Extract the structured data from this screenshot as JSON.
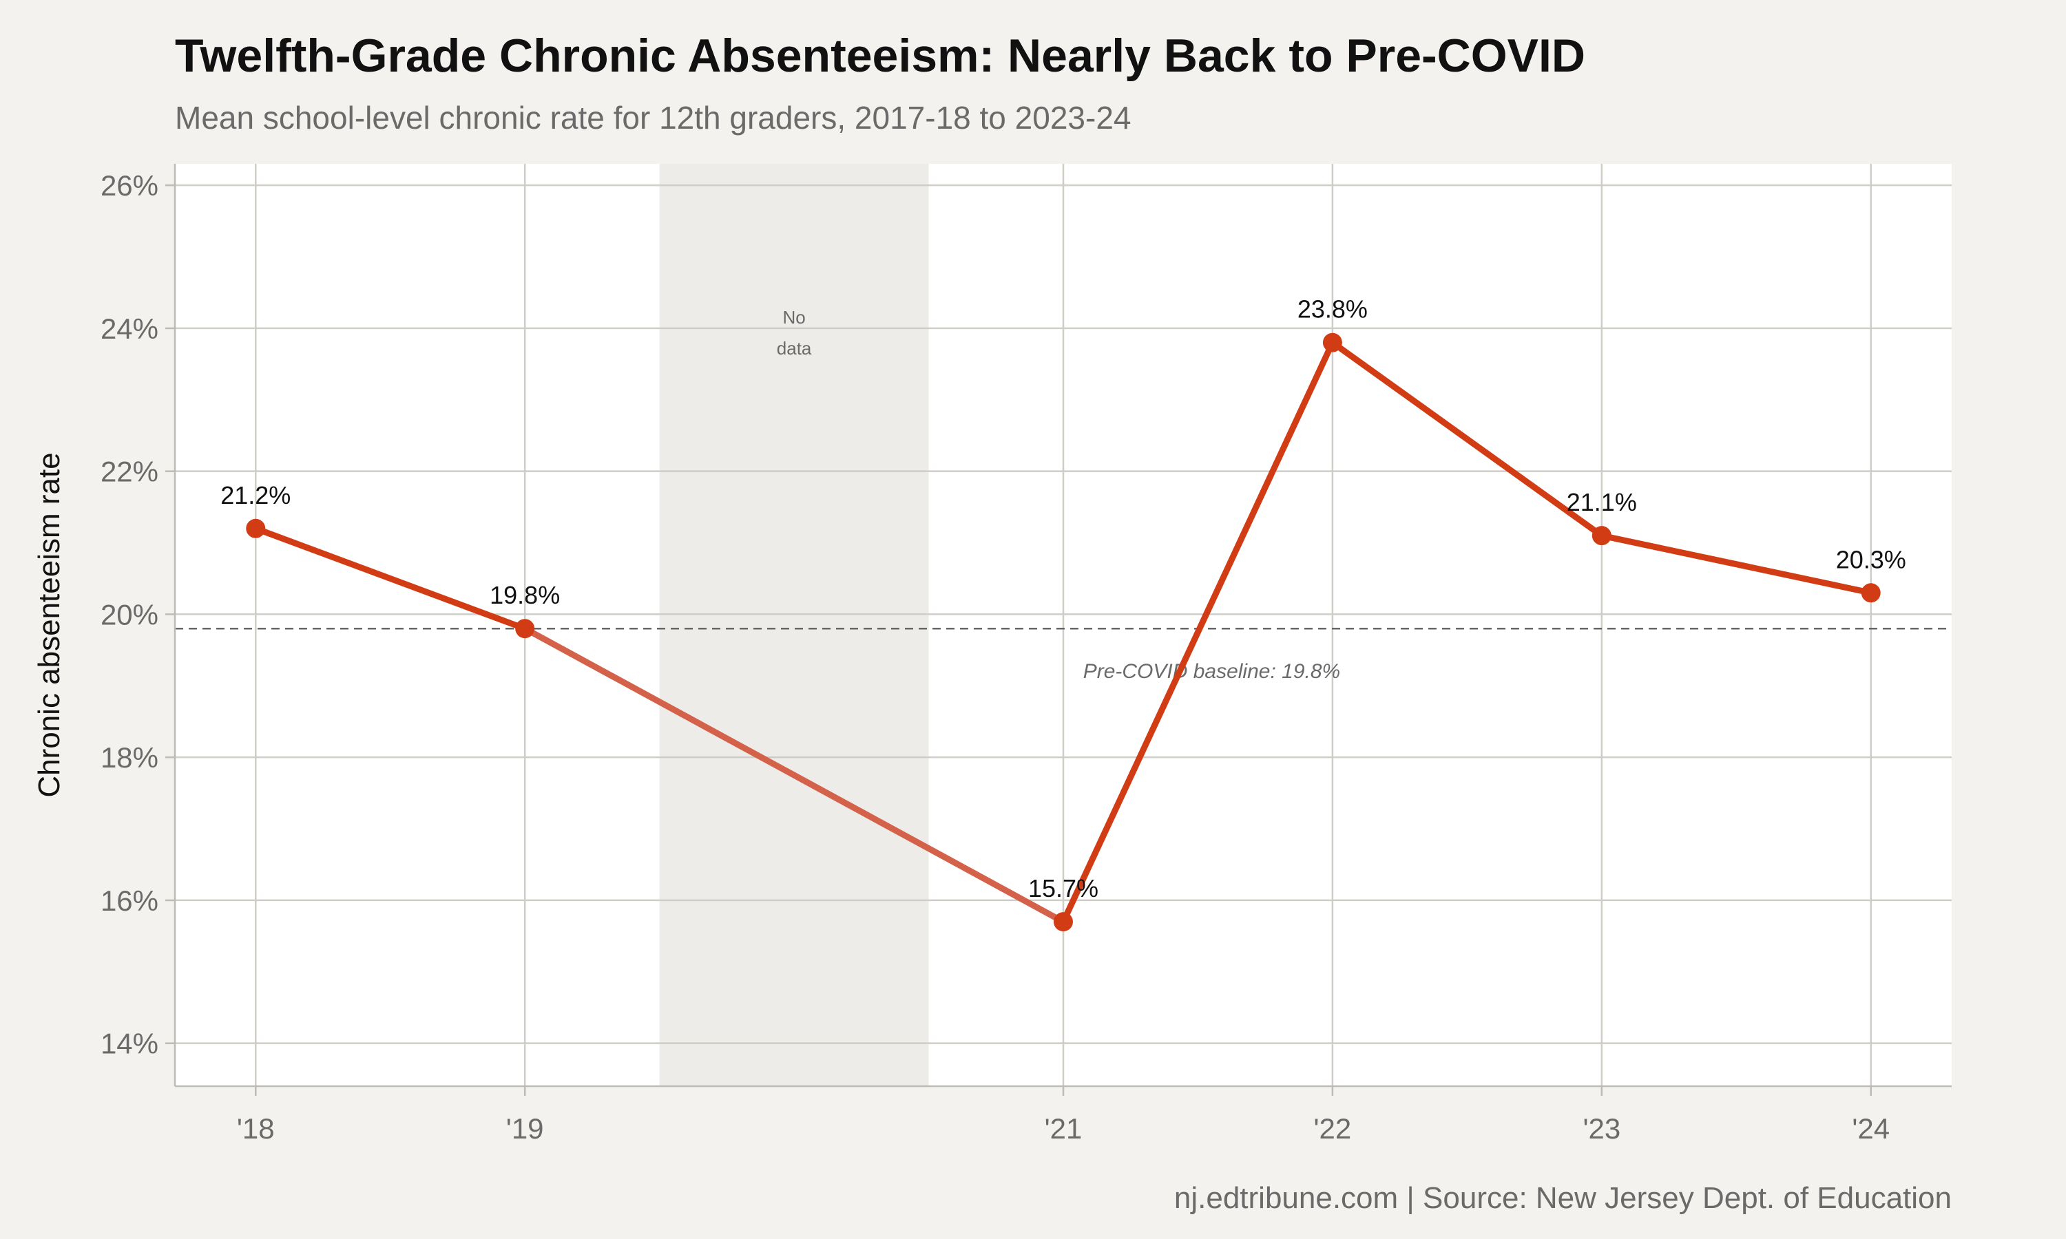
{
  "title": "Twelfth-Grade Chronic Absenteeism: Nearly Back to Pre-COVID",
  "subtitle": "Mean school-level chronic rate for 12th graders, 2017-18 to 2023-24",
  "caption": "nj.edtribune.com | Source: New Jersey Dept. of Education",
  "chart_data": {
    "type": "line",
    "title": "Twelfth-Grade Chronic Absenteeism: Nearly Back to Pre-COVID",
    "subtitle": "Mean school-level chronic rate for 12th graders, 2017-18 to 2023-24",
    "xlabel": "",
    "ylabel": "Chronic absenteeism rate",
    "x": [
      2018,
      2019,
      2021,
      2022,
      2023,
      2024
    ],
    "x_tick_labels": [
      "'18",
      "'19",
      "'21",
      "'22",
      "'23",
      "'24"
    ],
    "xlim": [
      2017.7,
      2024.3
    ],
    "ylim": [
      13.4,
      26.3
    ],
    "y_ticks": [
      14,
      16,
      18,
      20,
      22,
      24,
      26
    ],
    "y_tick_labels": [
      "14%",
      "16%",
      "18%",
      "20%",
      "22%",
      "24%",
      "26%"
    ],
    "series": [
      {
        "values": [
          21.2,
          19.8,
          15.7,
          23.8,
          21.1,
          20.3
        ],
        "labels": [
          "21.2%",
          "19.8%",
          "15.7%",
          "23.8%",
          "21.1%",
          "20.3%"
        ],
        "color": "#d13c14"
      }
    ],
    "shaded_region": {
      "x_start": 2019.5,
      "x_end": 2020.5,
      "label_lines": [
        "No",
        "data"
      ],
      "color": "#eeece8"
    },
    "reference_line": {
      "y": 19.8,
      "style": "dashed",
      "label": "Pre-COVID baseline: 19.8%"
    },
    "gap_segment_color": "#d4624a",
    "grid": true,
    "legend": "none"
  }
}
